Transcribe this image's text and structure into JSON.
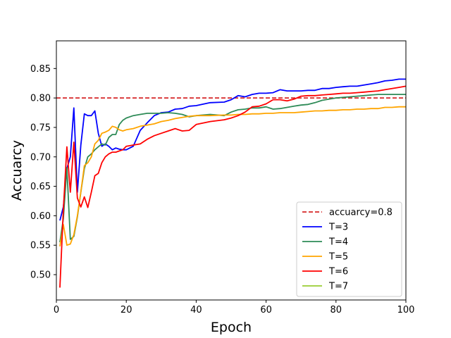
{
  "chart_data": {
    "type": "line",
    "title": "",
    "xlabel": "Epoch",
    "ylabel": "Accuarcy",
    "xlim": [
      0,
      100
    ],
    "ylim": [
      0.457,
      0.897
    ],
    "xticks": [
      0,
      20,
      40,
      60,
      80,
      100
    ],
    "yticks": [
      0.5,
      0.55,
      0.6,
      0.65,
      0.7,
      0.75,
      0.8,
      0.85
    ],
    "grid": false,
    "legend_position": "lower right",
    "reference_line": {
      "name": "accuarcy=0.8",
      "y": 0.8,
      "color": "#d62728",
      "style": "dashed"
    },
    "series": [
      {
        "name": "T=3",
        "color": "#0000ff",
        "x": [
          1,
          2,
          3,
          4,
          5,
          6,
          7,
          8,
          9,
          10,
          11,
          12,
          13,
          14,
          15,
          16,
          17,
          18,
          19,
          20,
          22,
          24,
          26,
          28,
          30,
          32,
          34,
          36,
          38,
          40,
          44,
          48,
          50,
          52,
          54,
          56,
          58,
          60,
          62,
          64,
          66,
          68,
          70,
          72,
          74,
          76,
          78,
          80,
          82,
          84,
          86,
          88,
          90,
          92,
          94,
          96,
          98,
          100
        ],
        "y": [
          0.592,
          0.615,
          0.68,
          0.7,
          0.783,
          0.64,
          0.72,
          0.773,
          0.77,
          0.77,
          0.778,
          0.74,
          0.718,
          0.722,
          0.718,
          0.712,
          0.715,
          0.713,
          0.712,
          0.712,
          0.718,
          0.745,
          0.758,
          0.77,
          0.775,
          0.776,
          0.781,
          0.782,
          0.786,
          0.787,
          0.792,
          0.793,
          0.797,
          0.804,
          0.802,
          0.806,
          0.808,
          0.808,
          0.809,
          0.814,
          0.812,
          0.812,
          0.812,
          0.813,
          0.813,
          0.816,
          0.816,
          0.818,
          0.819,
          0.82,
          0.82,
          0.822,
          0.824,
          0.826,
          0.829,
          0.83,
          0.832,
          0.832
        ]
      },
      {
        "name": "T=4",
        "color": "#2e8b57",
        "x": [
          1,
          2,
          3,
          4,
          5,
          6,
          7,
          8,
          9,
          10,
          11,
          12,
          13,
          14,
          15,
          16,
          17,
          18,
          19,
          20,
          22,
          24,
          26,
          28,
          30,
          32,
          34,
          36,
          38,
          40,
          44,
          48,
          50,
          52,
          54,
          56,
          58,
          60,
          62,
          64,
          66,
          68,
          70,
          72,
          74,
          76,
          78,
          80,
          82,
          84,
          86,
          88,
          90,
          92,
          94,
          96,
          98,
          100
        ],
        "y": [
          0.555,
          0.595,
          0.682,
          0.56,
          0.565,
          0.598,
          0.64,
          0.68,
          0.7,
          0.705,
          0.712,
          0.717,
          0.722,
          0.72,
          0.733,
          0.738,
          0.738,
          0.755,
          0.762,
          0.766,
          0.77,
          0.772,
          0.774,
          0.774,
          0.774,
          0.775,
          0.774,
          0.772,
          0.768,
          0.77,
          0.772,
          0.77,
          0.776,
          0.78,
          0.781,
          0.783,
          0.783,
          0.785,
          0.781,
          0.782,
          0.784,
          0.786,
          0.788,
          0.789,
          0.792,
          0.796,
          0.798,
          0.8,
          0.801,
          0.802,
          0.803,
          0.804,
          0.805,
          0.806,
          0.806,
          0.806,
          0.806,
          0.806
        ]
      },
      {
        "name": "T=5",
        "color": "#ffa500",
        "x": [
          1,
          2,
          3,
          4,
          5,
          6,
          7,
          8,
          9,
          10,
          11,
          12,
          13,
          14,
          15,
          16,
          17,
          18,
          19,
          20,
          22,
          24,
          26,
          28,
          30,
          32,
          34,
          36,
          38,
          40,
          44,
          48,
          50,
          52,
          54,
          56,
          58,
          60,
          62,
          64,
          66,
          68,
          70,
          72,
          74,
          76,
          78,
          80,
          82,
          84,
          86,
          88,
          90,
          92,
          94,
          96,
          98,
          100
        ],
        "y": [
          0.548,
          0.585,
          0.55,
          0.552,
          0.568,
          0.6,
          0.64,
          0.685,
          0.69,
          0.7,
          0.722,
          0.728,
          0.74,
          0.742,
          0.745,
          0.752,
          0.75,
          0.746,
          0.744,
          0.746,
          0.748,
          0.752,
          0.754,
          0.756,
          0.76,
          0.762,
          0.765,
          0.767,
          0.769,
          0.77,
          0.77,
          0.771,
          0.771,
          0.772,
          0.772,
          0.773,
          0.773,
          0.774,
          0.774,
          0.775,
          0.775,
          0.775,
          0.776,
          0.777,
          0.778,
          0.778,
          0.779,
          0.779,
          0.78,
          0.78,
          0.781,
          0.781,
          0.782,
          0.782,
          0.784,
          0.784,
          0.785,
          0.785
        ]
      },
      {
        "name": "T=6",
        "color": "#ff0000",
        "x": [
          1,
          2,
          3,
          4,
          5,
          6,
          7,
          8,
          9,
          10,
          11,
          12,
          13,
          14,
          15,
          16,
          17,
          18,
          19,
          20,
          22,
          24,
          26,
          28,
          30,
          32,
          34,
          36,
          38,
          40,
          44,
          48,
          50,
          52,
          54,
          56,
          58,
          60,
          62,
          64,
          66,
          68,
          70,
          72,
          74,
          76,
          78,
          80,
          82,
          84,
          86,
          88,
          90,
          92,
          94,
          96,
          98,
          100
        ],
        "y": [
          0.478,
          0.61,
          0.717,
          0.64,
          0.725,
          0.63,
          0.615,
          0.632,
          0.614,
          0.64,
          0.668,
          0.672,
          0.69,
          0.7,
          0.705,
          0.708,
          0.708,
          0.71,
          0.712,
          0.718,
          0.72,
          0.722,
          0.73,
          0.736,
          0.74,
          0.744,
          0.748,
          0.744,
          0.745,
          0.755,
          0.76,
          0.763,
          0.766,
          0.77,
          0.776,
          0.785,
          0.786,
          0.79,
          0.797,
          0.797,
          0.795,
          0.798,
          0.803,
          0.804,
          0.804,
          0.805,
          0.806,
          0.807,
          0.808,
          0.808,
          0.809,
          0.81,
          0.811,
          0.812,
          0.814,
          0.816,
          0.818,
          0.82
        ]
      },
      {
        "name": "T=7",
        "color": "#9acd32",
        "x": [],
        "y": []
      }
    ]
  }
}
